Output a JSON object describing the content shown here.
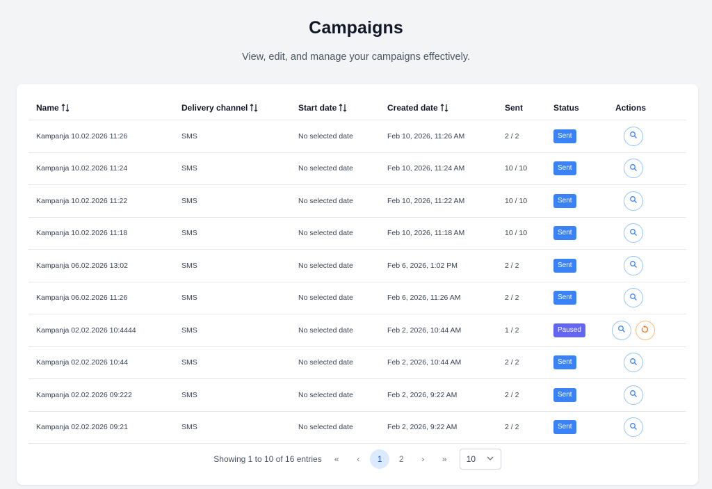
{
  "header": {
    "title": "Campaigns",
    "subtitle": "View, edit, and manage your campaigns effectively."
  },
  "table": {
    "columns": [
      "Name",
      "Delivery channel",
      "Start date",
      "Created date",
      "Sent",
      "Status",
      "Actions"
    ],
    "rows": [
      {
        "name": "Kampanja 10.02.2026 11:26",
        "channel": "SMS",
        "start": "No selected date",
        "created": "Feb 10, 2026, 11:26 AM",
        "sent": "2 / 2",
        "status": "Sent"
      },
      {
        "name": "Kampanja 10.02.2026 11:24",
        "channel": "SMS",
        "start": "No selected date",
        "created": "Feb 10, 2026, 11:24 AM",
        "sent": "10 / 10",
        "status": "Sent"
      },
      {
        "name": "Kampanja 10.02.2026 11:22",
        "channel": "SMS",
        "start": "No selected date",
        "created": "Feb 10, 2026, 11:22 AM",
        "sent": "10 / 10",
        "status": "Sent"
      },
      {
        "name": "Kampanja 10.02.2026 11:18",
        "channel": "SMS",
        "start": "No selected date",
        "created": "Feb 10, 2026, 11:18 AM",
        "sent": "10 / 10",
        "status": "Sent"
      },
      {
        "name": "Kampanja 06.02.2026 13:02",
        "channel": "SMS",
        "start": "No selected date",
        "created": "Feb 6, 2026, 1:02 PM",
        "sent": "2 / 2",
        "status": "Sent"
      },
      {
        "name": "Kampanja 06.02.2026 11:26",
        "channel": "SMS",
        "start": "No selected date",
        "created": "Feb 6, 2026, 11:26 AM",
        "sent": "2 / 2",
        "status": "Sent"
      },
      {
        "name": "Kampanja 02.02.2026 10:4444",
        "channel": "SMS",
        "start": "No selected date",
        "created": "Feb 2, 2026, 10:44 AM",
        "sent": "1 / 2",
        "status": "Paused"
      },
      {
        "name": "Kampanja 02.02.2026 10:44",
        "channel": "SMS",
        "start": "No selected date",
        "created": "Feb 2, 2026, 10:44 AM",
        "sent": "2 / 2",
        "status": "Sent"
      },
      {
        "name": "Kampanja 02.02.2026 09:222",
        "channel": "SMS",
        "start": "No selected date",
        "created": "Feb 2, 2026, 9:22 AM",
        "sent": "2 / 2",
        "status": "Sent"
      },
      {
        "name": "Kampanja 02.02.2026 09:21",
        "channel": "SMS",
        "start": "No selected date",
        "created": "Feb 2, 2026, 9:22 AM",
        "sent": "2 / 2",
        "status": "Sent"
      }
    ]
  },
  "pagination": {
    "info": "Showing 1 to 10 of 16 entries",
    "first": "«",
    "prev": "‹",
    "pages": [
      "1",
      "2"
    ],
    "current_page": "1",
    "next": "›",
    "last": "»",
    "page_size": "10"
  },
  "colors": {
    "sent_badge": "#3b82f6",
    "paused_badge": "#6366f1",
    "accent": "#3b82f6",
    "restart_accent": "#f97316"
  },
  "icons": {
    "sort": "sort-arrows-icon",
    "view": "search-icon",
    "restart": "restart-icon",
    "dropdown": "chevron-down-icon"
  }
}
